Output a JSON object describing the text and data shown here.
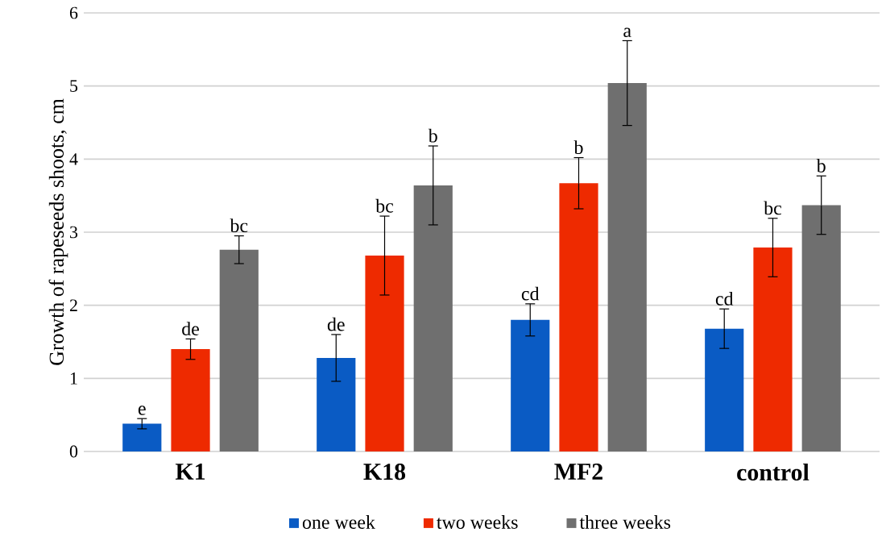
{
  "chart_data": {
    "type": "bar",
    "ylabel": "Growth of rapeseeds shoots, cm",
    "categories": [
      "K1",
      "K18",
      "MF2",
      "control"
    ],
    "series": [
      {
        "name": "one week",
        "color": "#0a5bc4",
        "values": [
          0.38,
          1.28,
          1.8,
          1.68
        ],
        "errors": [
          0.07,
          0.32,
          0.22,
          0.27
        ]
      },
      {
        "name": "two weeks",
        "color": "#ee2a00",
        "values": [
          1.4,
          2.68,
          3.67,
          2.79
        ],
        "errors": [
          0.14,
          0.54,
          0.35,
          0.4
        ]
      },
      {
        "name": "three weeks",
        "color": "#6f6f6f",
        "values": [
          2.76,
          3.64,
          5.04,
          3.37
        ],
        "errors": [
          0.19,
          0.54,
          0.58,
          0.4
        ]
      }
    ],
    "annotations": [
      "e",
      "de",
      "bc",
      "de",
      "bc",
      "b",
      "cd",
      "b",
      "a",
      "cd",
      "bc",
      "b"
    ],
    "ylim": [
      0,
      6
    ],
    "yticks": [
      0,
      1,
      2,
      3,
      4,
      5,
      6
    ],
    "grid": "y",
    "legend": "bottom"
  }
}
